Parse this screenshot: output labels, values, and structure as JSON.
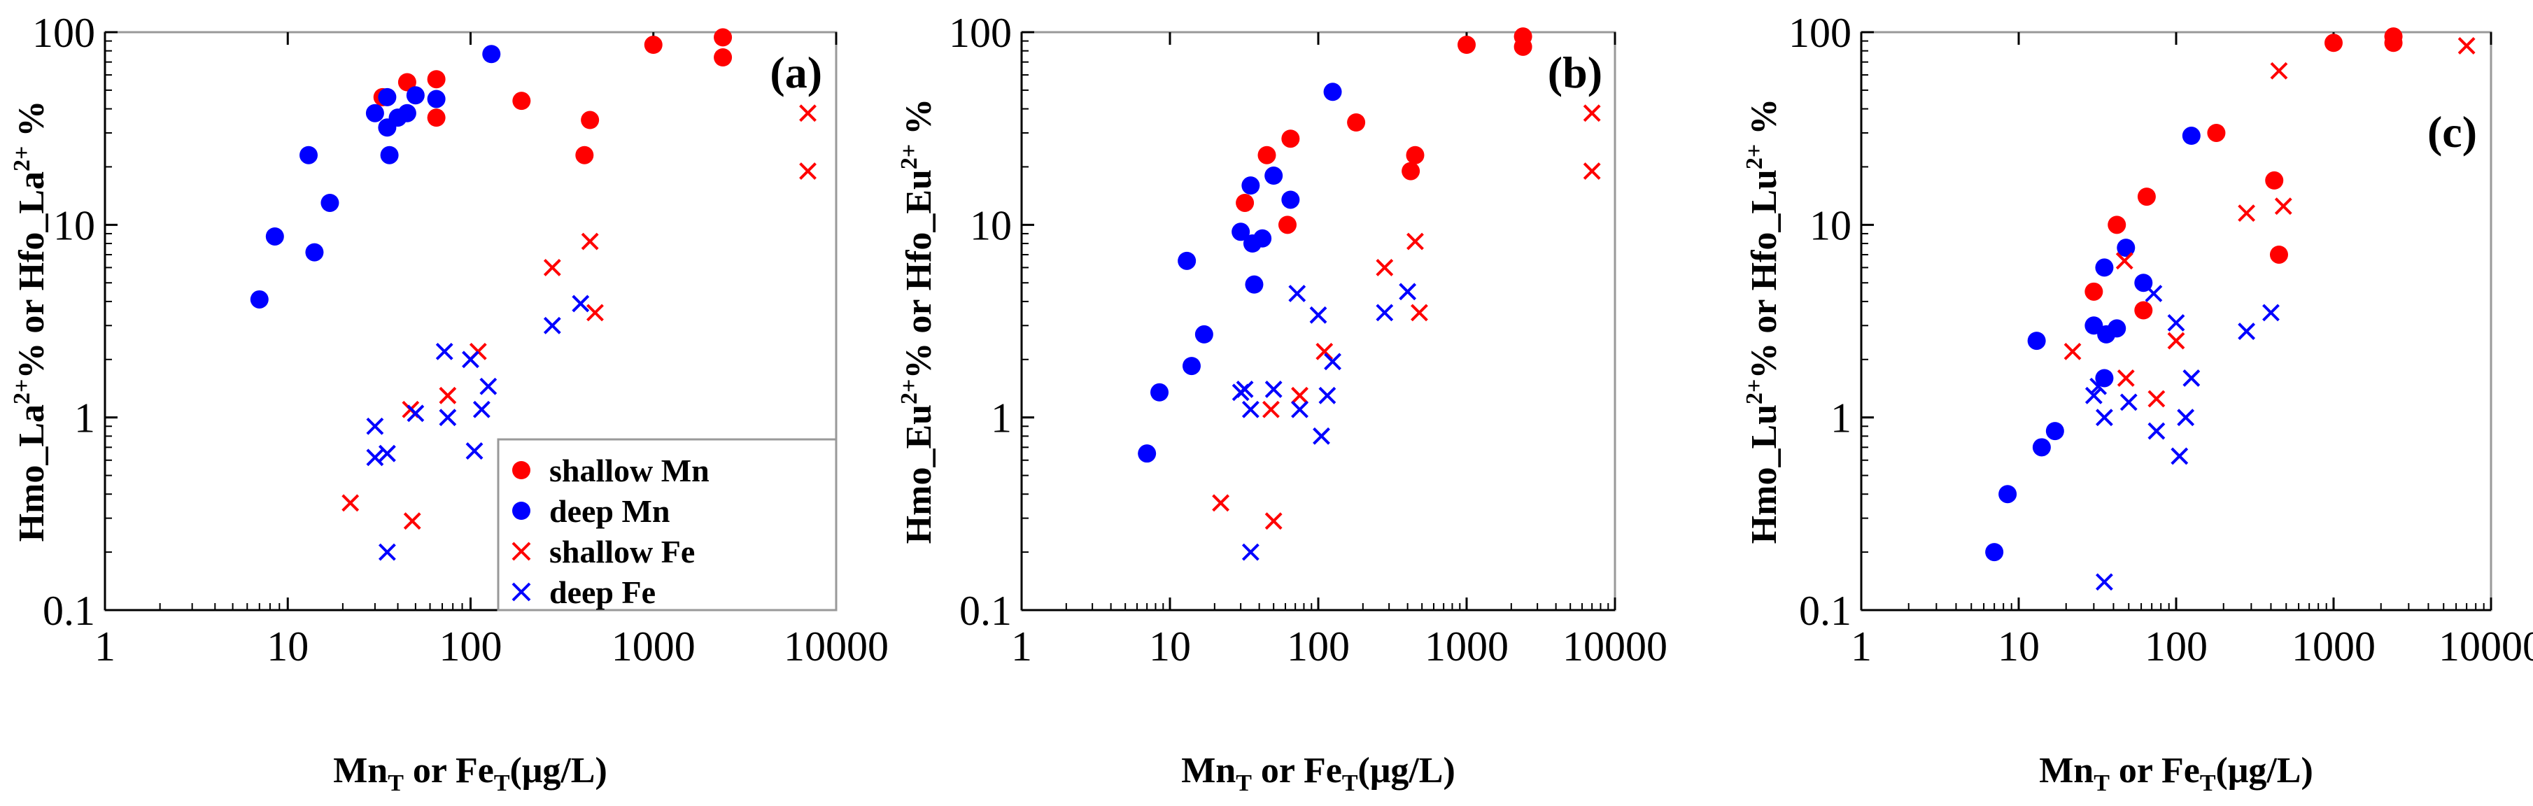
{
  "colors": {
    "shallow": "#ff0000",
    "deep": "#0000ff",
    "axis": "#000000",
    "frame": "#999999"
  },
  "chart_data": {
    "type": "scatter",
    "xscale": "log",
    "yscale": "log",
    "xlim": [
      1,
      10000
    ],
    "ylim": [
      0.1,
      100
    ],
    "x_ticks": [
      "1",
      "10",
      "100",
      "1000",
      "10000"
    ],
    "y_ticks": [
      "0.1",
      "1",
      "10",
      "100"
    ],
    "xlabel": {
      "a": "Mn",
      "b": "T",
      "c": " or Fe",
      "d": "T",
      "e": "(μg/L)"
    },
    "legend": {
      "position": "lower-right of panel (a)",
      "entries": [
        {
          "label": "shallow Mn",
          "marker": "dot",
          "color": "#ff0000"
        },
        {
          "label": "deep Mn",
          "marker": "dot",
          "color": "#0000ff"
        },
        {
          "label": "shallow Fe",
          "marker": "cross",
          "color": "#ff0000"
        },
        {
          "label": "deep Fe",
          "marker": "cross",
          "color": "#0000ff"
        }
      ]
    },
    "panels": [
      {
        "id": "a",
        "tag": "(a)",
        "ylabel": {
          "p1": "Hmo_La",
          "s1": "2+",
          "p2": "% or  Hfo_La",
          "s2": "2+",
          "p3": " %"
        },
        "series": [
          {
            "name": "shallow Mn",
            "marker": "dot",
            "color": "#ff0000",
            "points": [
              [
                33,
                46
              ],
              [
                45,
                55
              ],
              [
                65,
                57
              ],
              [
                65,
                36
              ],
              [
                190,
                44
              ],
              [
                420,
                23
              ],
              [
                450,
                35
              ],
              [
                1000,
                86
              ],
              [
                2400,
                94
              ],
              [
                2400,
                74
              ]
            ]
          },
          {
            "name": "deep Mn",
            "marker": "dot",
            "color": "#0000ff",
            "points": [
              [
                7,
                4.1
              ],
              [
                8.5,
                8.7
              ],
              [
                13,
                23
              ],
              [
                14,
                7.2
              ],
              [
                17,
                13
              ],
              [
                30,
                38
              ],
              [
                35,
                46
              ],
              [
                35,
                32
              ],
              [
                36,
                23
              ],
              [
                40,
                36
              ],
              [
                45,
                38
              ],
              [
                50,
                47
              ],
              [
                65,
                45
              ],
              [
                130,
                77
              ]
            ]
          },
          {
            "name": "shallow Fe",
            "marker": "cross",
            "color": "#ff0000",
            "points": [
              [
                22,
                0.36
              ],
              [
                47,
                1.1
              ],
              [
                48,
                0.29
              ],
              [
                75,
                1.3
              ],
              [
                110,
                2.2
              ],
              [
                280,
                6
              ],
              [
                450,
                8.2
              ],
              [
                480,
                3.5
              ],
              [
                7000,
                38
              ],
              [
                7000,
                19
              ]
            ]
          },
          {
            "name": "deep Fe",
            "marker": "cross",
            "color": "#0000ff",
            "points": [
              [
                30,
                0.9
              ],
              [
                30,
                0.62
              ],
              [
                35,
                0.65
              ],
              [
                35,
                0.2
              ],
              [
                50,
                1.05
              ],
              [
                72,
                2.2
              ],
              [
                75,
                1.0
              ],
              [
                100,
                2.0
              ],
              [
                105,
                0.67
              ],
              [
                115,
                1.1
              ],
              [
                125,
                1.45
              ],
              [
                280,
                3.0
              ],
              [
                400,
                3.9
              ]
            ]
          }
        ]
      },
      {
        "id": "b",
        "tag": "(b)",
        "ylabel": {
          "p1": "Hmo_Eu",
          "s1": "2+",
          "p2": "% or  Hfo_Eu",
          "s2": "2+",
          "p3": " %"
        },
        "series": [
          {
            "name": "shallow Mn",
            "marker": "dot",
            "color": "#ff0000",
            "points": [
              [
                32,
                13
              ],
              [
                45,
                23
              ],
              [
                62,
                10
              ],
              [
                65,
                28
              ],
              [
                180,
                34
              ],
              [
                420,
                19
              ],
              [
                450,
                23
              ],
              [
                1000,
                86
              ],
              [
                2400,
                95
              ],
              [
                2400,
                84
              ]
            ]
          },
          {
            "name": "deep Mn",
            "marker": "dot",
            "color": "#0000ff",
            "points": [
              [
                7,
                0.65
              ],
              [
                8.5,
                1.35
              ],
              [
                13,
                6.5
              ],
              [
                14,
                1.85
              ],
              [
                17,
                2.7
              ],
              [
                30,
                9.2
              ],
              [
                35,
                16
              ],
              [
                36,
                8
              ],
              [
                37,
                4.9
              ],
              [
                42,
                8.5
              ],
              [
                50,
                18
              ],
              [
                65,
                13.5
              ],
              [
                125,
                49
              ]
            ]
          },
          {
            "name": "shallow Fe",
            "marker": "cross",
            "color": "#ff0000",
            "points": [
              [
                22,
                0.36
              ],
              [
                48,
                1.1
              ],
              [
                50,
                0.29
              ],
              [
                75,
                1.3
              ],
              [
                110,
                2.2
              ],
              [
                280,
                6
              ],
              [
                450,
                8.2
              ],
              [
                480,
                3.5
              ],
              [
                7000,
                38
              ],
              [
                7000,
                19
              ]
            ]
          },
          {
            "name": "deep Fe",
            "marker": "cross",
            "color": "#0000ff",
            "points": [
              [
                30,
                1.35
              ],
              [
                32,
                1.4
              ],
              [
                35,
                1.1
              ],
              [
                35,
                0.2
              ],
              [
                50,
                1.4
              ],
              [
                72,
                4.4
              ],
              [
                75,
                1.1
              ],
              [
                100,
                3.4
              ],
              [
                105,
                0.8
              ],
              [
                115,
                1.3
              ],
              [
                125,
                1.95
              ],
              [
                280,
                3.5
              ],
              [
                400,
                4.5
              ]
            ]
          }
        ]
      },
      {
        "id": "c",
        "tag": "(c)",
        "ylabel": {
          "p1": "Hmo_Lu",
          "s1": "2+",
          "p2": "% or  Hfo_Lu",
          "s2": "2+",
          "p3": " %"
        },
        "series": [
          {
            "name": "shallow Mn",
            "marker": "dot",
            "color": "#ff0000",
            "points": [
              [
                30,
                4.5
              ],
              [
                42,
                10
              ],
              [
                62,
                3.6
              ],
              [
                65,
                14
              ],
              [
                180,
                30
              ],
              [
                420,
                17
              ],
              [
                450,
                7
              ],
              [
                1000,
                88
              ],
              [
                2400,
                95
              ],
              [
                2400,
                88
              ]
            ]
          },
          {
            "name": "deep Mn",
            "marker": "dot",
            "color": "#0000ff",
            "points": [
              [
                7,
                0.2
              ],
              [
                8.5,
                0.4
              ],
              [
                13,
                2.5
              ],
              [
                14,
                0.7
              ],
              [
                17,
                0.85
              ],
              [
                30,
                3
              ],
              [
                35,
                6
              ],
              [
                35,
                1.6
              ],
              [
                36,
                2.7
              ],
              [
                42,
                2.9
              ],
              [
                48,
                7.6
              ],
              [
                62,
                5
              ],
              [
                125,
                29
              ]
            ]
          },
          {
            "name": "shallow Fe",
            "marker": "cross",
            "color": "#ff0000",
            "points": [
              [
                22,
                2.2
              ],
              [
                47,
                6.5
              ],
              [
                48,
                1.6
              ],
              [
                75,
                1.25
              ],
              [
                100,
                2.5
              ],
              [
                280,
                11.5
              ],
              [
                450,
                63
              ],
              [
                480,
                12.5
              ],
              [
                7000,
                85
              ]
            ]
          },
          {
            "name": "deep Fe",
            "marker": "cross",
            "color": "#0000ff",
            "points": [
              [
                30,
                1.3
              ],
              [
                32,
                1.45
              ],
              [
                35,
                1.0
              ],
              [
                35,
                0.14
              ],
              [
                50,
                1.2
              ],
              [
                72,
                4.4
              ],
              [
                75,
                0.85
              ],
              [
                100,
                3.1
              ],
              [
                105,
                0.63
              ],
              [
                115,
                1.0
              ],
              [
                125,
                1.6
              ],
              [
                280,
                2.8
              ],
              [
                400,
                3.5
              ]
            ]
          }
        ]
      }
    ]
  }
}
